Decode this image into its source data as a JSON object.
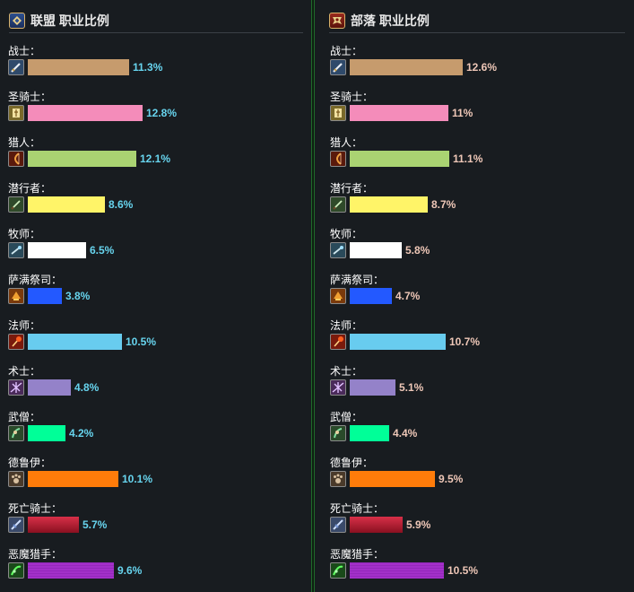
{
  "alliance": {
    "title": "联盟 职业比例",
    "classes": [
      {
        "label": "战士：",
        "percent": 11.3,
        "pct_text": "11.3%",
        "color": "#c69b6d",
        "icon": "sword-icon",
        "icon_bg": "#2f4a6b"
      },
      {
        "label": "圣骑士：",
        "percent": 12.8,
        "pct_text": "12.8%",
        "color": "#f48cba",
        "icon": "holy-book-icon",
        "icon_bg": "#7a6a2a"
      },
      {
        "label": "猎人：",
        "percent": 12.1,
        "pct_text": "12.1%",
        "color": "#aad372",
        "icon": "bow-icon",
        "icon_bg": "#5a1a0c"
      },
      {
        "label": "潜行者：",
        "percent": 8.6,
        "pct_text": "8.6%",
        "color": "#fff468",
        "icon": "dagger-icon",
        "icon_bg": "#2f4a2a"
      },
      {
        "label": "牧师：",
        "percent": 6.5,
        "pct_text": "6.5%",
        "color": "#ffffff",
        "icon": "staff-icon",
        "icon_bg": "#2a4a5a"
      },
      {
        "label": "萨满祭司：",
        "percent": 3.8,
        "pct_text": "3.8%",
        "color": "#2359ff",
        "icon": "totem-icon",
        "icon_bg": "#7a3a0c"
      },
      {
        "label": "法师：",
        "percent": 10.5,
        "pct_text": "10.5%",
        "color": "#68ccef",
        "icon": "fire-staff-icon",
        "icon_bg": "#7a1a0c"
      },
      {
        "label": "术士：",
        "percent": 4.8,
        "pct_text": "4.8%",
        "color": "#9482c9",
        "icon": "shadow-icon",
        "icon_bg": "#4a2a5a"
      },
      {
        "label": "武僧：",
        "percent": 4.2,
        "pct_text": "4.2%",
        "color": "#00ff98",
        "icon": "monk-icon",
        "icon_bg": "#2a4a2a"
      },
      {
        "label": "德鲁伊：",
        "percent": 10.1,
        "pct_text": "10.1%",
        "color": "#ff7c0a",
        "icon": "paw-icon",
        "icon_bg": "#4a3a2a"
      },
      {
        "label": "死亡骑士：",
        "percent": 5.7,
        "pct_text": "5.7%",
        "color": "#c41e3a",
        "icon": "runeblade-icon",
        "icon_bg": "#3a4a6a"
      },
      {
        "label": "恶魔猎手：",
        "percent": 9.6,
        "pct_text": "9.6%",
        "color": "#a330c9",
        "icon": "demon-icon",
        "icon_bg": "#1a4a1a"
      }
    ]
  },
  "horde": {
    "title": "部落 职业比例",
    "classes": [
      {
        "label": "战士：",
        "percent": 12.6,
        "pct_text": "12.6%",
        "color": "#c69b6d",
        "icon": "sword-icon",
        "icon_bg": "#2f4a6b"
      },
      {
        "label": "圣骑士：",
        "percent": 11,
        "pct_text": "11%",
        "color": "#f48cba",
        "icon": "holy-book-icon",
        "icon_bg": "#7a6a2a"
      },
      {
        "label": "猎人：",
        "percent": 11.1,
        "pct_text": "11.1%",
        "color": "#aad372",
        "icon": "bow-icon",
        "icon_bg": "#5a1a0c"
      },
      {
        "label": "潜行者：",
        "percent": 8.7,
        "pct_text": "8.7%",
        "color": "#fff468",
        "icon": "dagger-icon",
        "icon_bg": "#2f4a2a"
      },
      {
        "label": "牧师：",
        "percent": 5.8,
        "pct_text": "5.8%",
        "color": "#ffffff",
        "icon": "staff-icon",
        "icon_bg": "#2a4a5a"
      },
      {
        "label": "萨满祭司：",
        "percent": 4.7,
        "pct_text": "4.7%",
        "color": "#2359ff",
        "icon": "totem-icon",
        "icon_bg": "#7a3a0c"
      },
      {
        "label": "法师：",
        "percent": 10.7,
        "pct_text": "10.7%",
        "color": "#68ccef",
        "icon": "fire-staff-icon",
        "icon_bg": "#7a1a0c"
      },
      {
        "label": "术士：",
        "percent": 5.1,
        "pct_text": "5.1%",
        "color": "#9482c9",
        "icon": "shadow-icon",
        "icon_bg": "#4a2a5a"
      },
      {
        "label": "武僧：",
        "percent": 4.4,
        "pct_text": "4.4%",
        "color": "#00ff98",
        "icon": "monk-icon",
        "icon_bg": "#2a4a2a"
      },
      {
        "label": "德鲁伊：",
        "percent": 9.5,
        "pct_text": "9.5%",
        "color": "#ff7c0a",
        "icon": "paw-icon",
        "icon_bg": "#4a3a2a"
      },
      {
        "label": "死亡骑士：",
        "percent": 5.9,
        "pct_text": "5.9%",
        "color": "#c41e3a",
        "icon": "runeblade-icon",
        "icon_bg": "#3a4a6a"
      },
      {
        "label": "恶魔猎手：",
        "percent": 10.5,
        "pct_text": "10.5%",
        "color": "#a330c9",
        "icon": "demon-icon",
        "icon_bg": "#1a4a1a"
      }
    ]
  }
}
